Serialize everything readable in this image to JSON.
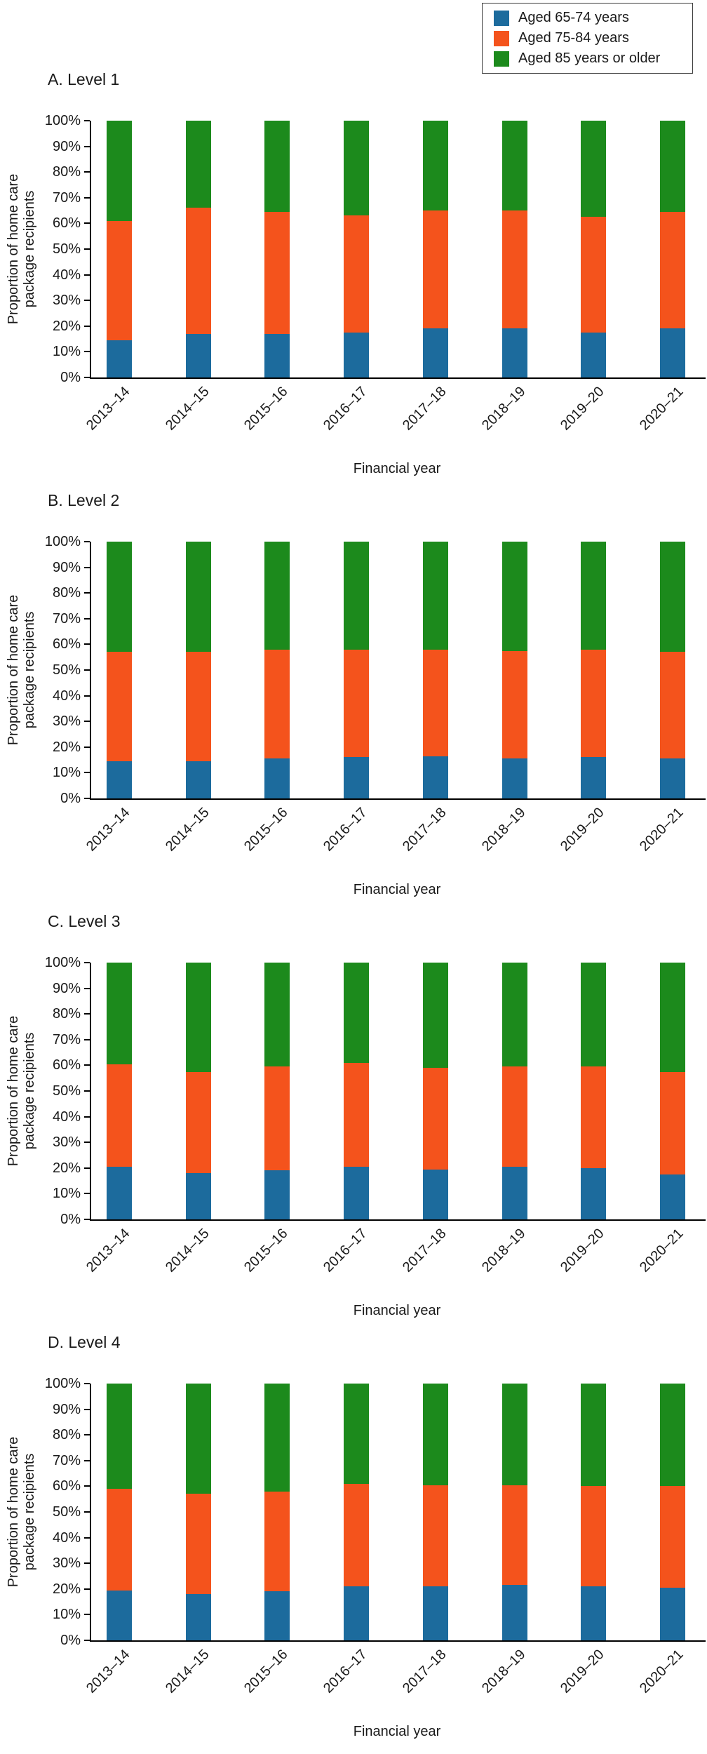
{
  "legend": {
    "items": [
      {
        "label": "Aged 65-74 years",
        "color": "#1c6b9d"
      },
      {
        "label": "Aged 75-84 years",
        "color": "#f4531c"
      },
      {
        "label": "Aged 85 years or older",
        "color": "#1c8a1c"
      }
    ]
  },
  "axes": {
    "xlabel": "Financial year",
    "ylabel": "Proportion of home care\npackage recipients",
    "ytick_labels": [
      "100%",
      "90%",
      "80%",
      "70%",
      "60%",
      "50%",
      "40%",
      "30%",
      "20%",
      "10%",
      "0%"
    ],
    "ylim": [
      0,
      100
    ]
  },
  "chart_data": [
    {
      "type": "bar",
      "stacked": true,
      "title": "A. Level 1",
      "categories": [
        "2013–14",
        "2014–15",
        "2015–16",
        "2016–17",
        "2017–18",
        "2018–19",
        "2019–20",
        "2020–21"
      ],
      "series": [
        {
          "name": "Aged 65-74 years",
          "values": [
            14.5,
            17,
            17,
            17.5,
            19,
            19,
            17.5,
            19
          ]
        },
        {
          "name": "Aged 75-84 years",
          "values": [
            46.5,
            49,
            47.5,
            45.5,
            46,
            46,
            45,
            45.5
          ]
        },
        {
          "name": "Aged 85 years or older",
          "values": [
            39,
            34,
            35.5,
            37,
            35,
            35,
            37.5,
            35.5
          ]
        }
      ],
      "xlabel": "Financial year",
      "ylabel": "Proportion of home care package recipients",
      "ylim": [
        0,
        100
      ],
      "unit": "%",
      "legend_position": "top-right-of-page",
      "grid": false
    },
    {
      "type": "bar",
      "stacked": true,
      "title": "B. Level 2",
      "categories": [
        "2013–14",
        "2014–15",
        "2015–16",
        "2016–17",
        "2017–18",
        "2018–19",
        "2019–20",
        "2020–21"
      ],
      "series": [
        {
          "name": "Aged 65-74 years",
          "values": [
            14.5,
            14.5,
            15.5,
            16,
            16.5,
            15.5,
            16,
            15.5
          ]
        },
        {
          "name": "Aged 75-84 years",
          "values": [
            42.5,
            42.5,
            42.5,
            42,
            41.5,
            42,
            42,
            41.5
          ]
        },
        {
          "name": "Aged 85 years or older",
          "values": [
            43,
            43,
            42,
            42,
            42,
            42.5,
            42,
            43
          ]
        }
      ],
      "xlabel": "Financial year",
      "ylabel": "Proportion of home care package recipients",
      "ylim": [
        0,
        100
      ],
      "unit": "%",
      "grid": false
    },
    {
      "type": "bar",
      "stacked": true,
      "title": "C. Level 3",
      "categories": [
        "2013–14",
        "2014–15",
        "2015–16",
        "2016–17",
        "2017–18",
        "2018–19",
        "2019–20",
        "2020–21"
      ],
      "series": [
        {
          "name": "Aged 65-74 years",
          "values": [
            20.5,
            18,
            19,
            20.5,
            19.5,
            20.5,
            20,
            17.5
          ]
        },
        {
          "name": "Aged 75-84 years",
          "values": [
            40,
            39.5,
            40.5,
            40.5,
            39.5,
            39,
            39.5,
            40
          ]
        },
        {
          "name": "Aged 85 years or older",
          "values": [
            39.5,
            42.5,
            40.5,
            39,
            41,
            40.5,
            40.5,
            42.5
          ]
        }
      ],
      "xlabel": "Financial year",
      "ylabel": "Proportion of home care package recipients",
      "ylim": [
        0,
        100
      ],
      "unit": "%",
      "grid": false
    },
    {
      "type": "bar",
      "stacked": true,
      "title": "D. Level 4",
      "categories": [
        "2013–14",
        "2014–15",
        "2015–16",
        "2016–17",
        "2017–18",
        "2018–19",
        "2019–20",
        "2020–21"
      ],
      "series": [
        {
          "name": "Aged 65-74 years",
          "values": [
            19.5,
            18,
            19,
            21,
            21,
            21.5,
            21,
            20.5
          ]
        },
        {
          "name": "Aged 75-84 years",
          "values": [
            39.5,
            39,
            39,
            40,
            39.5,
            39,
            39,
            39.5
          ]
        },
        {
          "name": "Aged 85 years or older",
          "values": [
            41,
            43,
            42,
            39,
            39.5,
            39.5,
            40,
            40
          ]
        }
      ],
      "xlabel": "Financial year",
      "ylabel": "Proportion of home care package recipients",
      "ylim": [
        0,
        100
      ],
      "unit": "%",
      "grid": false
    }
  ]
}
